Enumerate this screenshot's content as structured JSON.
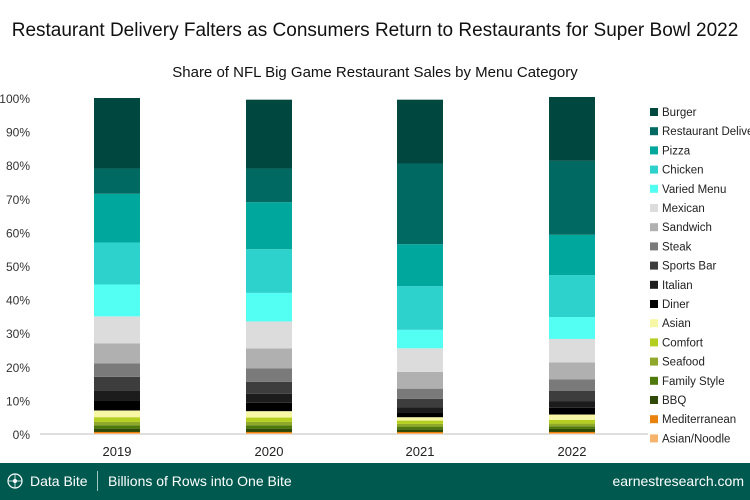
{
  "header": {
    "title": "Restaurant Delivery Falters as Consumers Return to Restaurants for Super Bowl 2022",
    "subtitle": "Share of NFL Big Game Restaurant Sales by Menu Category"
  },
  "footer": {
    "brand": "Data Bite",
    "tagline": "Billions of Rows into One Bite",
    "site": "earnestresearch.com",
    "background": "#00594f"
  },
  "chart_data": {
    "type": "bar",
    "stacked": true,
    "percent": true,
    "categories": [
      "2019",
      "2020",
      "2021",
      "2022"
    ],
    "ylim": [
      0,
      100
    ],
    "yticks": [
      "0%",
      "10%",
      "20%",
      "30%",
      "40%",
      "50%",
      "60%",
      "70%",
      "80%",
      "90%",
      "100%"
    ],
    "legend_position": "right",
    "series": [
      {
        "name": "Asian/Noodle",
        "color": "#f7b36b",
        "values": [
          0.3,
          0.3,
          0.3,
          0.3
        ]
      },
      {
        "name": "Mediterranean",
        "color": "#e8820c",
        "values": [
          0.3,
          0.3,
          0.3,
          0.3
        ]
      },
      {
        "name": "BBQ",
        "color": "#2f4a06",
        "values": [
          1.0,
          1.0,
          0.8,
          0.9
        ]
      },
      {
        "name": "Family Style",
        "color": "#4e7a0c",
        "values": [
          1.0,
          1.0,
          0.8,
          0.8
        ]
      },
      {
        "name": "Seafood",
        "color": "#8fa82a",
        "values": [
          1.0,
          1.0,
          0.8,
          0.8
        ]
      },
      {
        "name": "Comfort",
        "color": "#b4cf1f",
        "values": [
          1.4,
          1.3,
          1.0,
          1.1
        ]
      },
      {
        "name": "Asian",
        "color": "#f7f7a6",
        "values": [
          2.0,
          1.9,
          1.0,
          1.6
        ]
      },
      {
        "name": "Diner",
        "color": "#000000",
        "values": [
          3.0,
          2.5,
          1.5,
          2.0
        ]
      },
      {
        "name": "Italian",
        "color": "#1c1c1c",
        "values": [
          3.0,
          2.7,
          1.5,
          2.0
        ]
      },
      {
        "name": "Sports Bar",
        "color": "#3d3d3d",
        "values": [
          4.0,
          3.5,
          2.5,
          3.0
        ]
      },
      {
        "name": "Steak",
        "color": "#7a7a7a",
        "values": [
          4.0,
          4.0,
          3.0,
          3.5
        ]
      },
      {
        "name": "Sandwich",
        "color": "#b0b0b0",
        "values": [
          6.0,
          6.0,
          5.0,
          5.0
        ]
      },
      {
        "name": "Mexican",
        "color": "#dcdcdc",
        "values": [
          8.0,
          8.0,
          7.0,
          7.0
        ]
      },
      {
        "name": "Varied Menu",
        "color": "#52fff2",
        "values": [
          9.5,
          8.5,
          5.5,
          6.5
        ]
      },
      {
        "name": "Chicken",
        "color": "#2ed2cc",
        "values": [
          12.5,
          13.0,
          13.0,
          12.5
        ]
      },
      {
        "name": "Pizza",
        "color": "#00a79d",
        "values": [
          14.5,
          14.0,
          12.5,
          12.0
        ]
      },
      {
        "name": "Restaurant Delivery",
        "color": "#006a62",
        "values": [
          7.5,
          10.0,
          24.0,
          22.0
        ]
      },
      {
        "name": "Burger",
        "color": "#00473f",
        "values": [
          21.0,
          20.5,
          19.0,
          19.0
        ]
      }
    ],
    "legend_order": [
      "Burger",
      "Restaurant Delivery",
      "Pizza",
      "Chicken",
      "Varied Menu",
      "Mexican",
      "Sandwich",
      "Steak",
      "Sports Bar",
      "Italian",
      "Diner",
      "Asian",
      "Comfort",
      "Seafood",
      "Family Style",
      "BBQ",
      "Mediterranean",
      "Asian/Noodle"
    ]
  }
}
